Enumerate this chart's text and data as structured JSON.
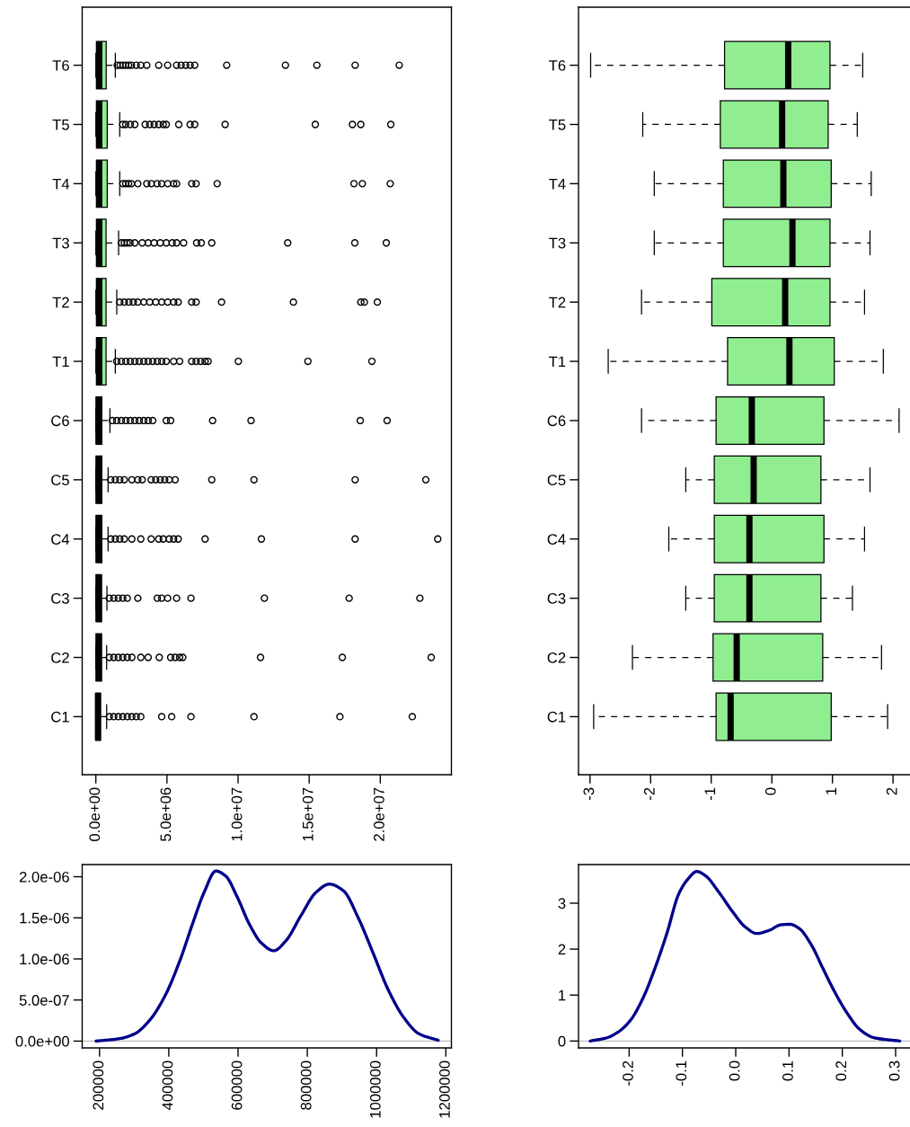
{
  "chart_data": [
    {
      "type": "box",
      "orientation": "horizontal",
      "categories": [
        "T6",
        "T5",
        "T4",
        "T3",
        "T2",
        "T1",
        "C6",
        "C5",
        "C4",
        "C3",
        "C2",
        "C1"
      ],
      "color": "#90ee90",
      "marker": "circle",
      "line_style": "dashed",
      "boxes": [
        {
          "low": 0,
          "q1": 40000,
          "median": 240000,
          "q3": 730000,
          "high": 1370000,
          "outliers": [
            1500000,
            1700000,
            1900000,
            2100000,
            2300000,
            2500000,
            2840000,
            3160000,
            3580000,
            4420000,
            5050000,
            5680000,
            6000000,
            6320000,
            6630000,
            6950000,
            9200000,
            13330000,
            15540000,
            18230000,
            21330000
          ]
        },
        {
          "low": 0,
          "q1": 40000,
          "median": 240000,
          "q3": 800000,
          "high": 1680000,
          "outliers": [
            1890000,
            2100000,
            2420000,
            2740000,
            3470000,
            3790000,
            4100000,
            4420000,
            4740000,
            4950000,
            5830000,
            6630000,
            6950000,
            9090000,
            15430000,
            18040000,
            18630000,
            20740000
          ]
        },
        {
          "low": 0,
          "q1": 40000,
          "median": 240000,
          "q3": 800000,
          "high": 1680000,
          "outliers": [
            1900000,
            2100000,
            2300000,
            2500000,
            2950000,
            3580000,
            3900000,
            4300000,
            4630000,
            5050000,
            5470000,
            5680000,
            6740000,
            7050000,
            8530000,
            18150000,
            18740000,
            20700000
          ]
        },
        {
          "low": 0,
          "q1": 40000,
          "median": 240000,
          "q3": 720000,
          "high": 1600000,
          "outliers": [
            1800000,
            2000000,
            2200000,
            2400000,
            2740000,
            3260000,
            3680000,
            4100000,
            4530000,
            4950000,
            5370000,
            5680000,
            6170000,
            7090000,
            7410000,
            8150000,
            13490000,
            18210000,
            20420000
          ]
        },
        {
          "low": 0,
          "q1": 40000,
          "median": 240000,
          "q3": 720000,
          "high": 1470000,
          "outliers": [
            1680000,
            2000000,
            2320000,
            2630000,
            2950000,
            3370000,
            3790000,
            4210000,
            4630000,
            5050000,
            5470000,
            5790000,
            6740000,
            7050000,
            8840000,
            13890000,
            18630000,
            18880000,
            19790000
          ]
        },
        {
          "low": 0,
          "q1": 40000,
          "median": 240000,
          "q3": 720000,
          "high": 1370000,
          "outliers": [
            1470000,
            1790000,
            2110000,
            2420000,
            2740000,
            3050000,
            3370000,
            3680000,
            4000000,
            4320000,
            4630000,
            4950000,
            5470000,
            5890000,
            6740000,
            7050000,
            7370000,
            7680000,
            7890000,
            10020000,
            14910000,
            19410000
          ]
        },
        {
          "low": 0,
          "q1": 20000,
          "median": 200000,
          "q3": 420000,
          "high": 990000,
          "outliers": [
            1160000,
            1470000,
            1790000,
            2110000,
            2420000,
            2740000,
            3050000,
            3370000,
            3680000,
            4000000,
            4950000,
            5260000,
            8210000,
            10910000,
            18590000,
            20480000
          ]
        },
        {
          "low": 0,
          "q1": 20000,
          "median": 200000,
          "q3": 420000,
          "high": 860000,
          "outliers": [
            1050000,
            1370000,
            1680000,
            2000000,
            2530000,
            2950000,
            3260000,
            3890000,
            4210000,
            4530000,
            4840000,
            5160000,
            5580000,
            8150000,
            11120000,
            18230000,
            23200000
          ]
        },
        {
          "low": 0,
          "q1": 20000,
          "median": 200000,
          "q3": 420000,
          "high": 860000,
          "outliers": [
            1050000,
            1370000,
            1680000,
            2000000,
            2530000,
            3160000,
            3890000,
            4420000,
            4740000,
            5160000,
            5470000,
            5790000,
            7680000,
            11640000,
            18230000,
            24040000
          ]
        },
        {
          "low": 0,
          "q1": 20000,
          "median": 200000,
          "q3": 400000,
          "high": 780000,
          "outliers": [
            950000,
            1260000,
            1580000,
            1890000,
            2210000,
            2950000,
            4320000,
            4630000,
            5050000,
            5680000,
            6690000,
            11850000,
            17810000,
            22780000
          ]
        },
        {
          "low": 0,
          "q1": 20000,
          "median": 200000,
          "q3": 400000,
          "high": 760000,
          "outliers": [
            950000,
            1260000,
            1580000,
            1890000,
            2210000,
            2530000,
            3160000,
            3680000,
            4460000,
            5260000,
            5580000,
            5890000,
            6110000,
            11580000,
            17330000,
            23580000
          ]
        },
        {
          "low": 0,
          "q1": 0,
          "median": 150000,
          "q3": 320000,
          "high": 760000,
          "outliers": [
            950000,
            1260000,
            1580000,
            1890000,
            2210000,
            2530000,
            2840000,
            3160000,
            4630000,
            5330000,
            6690000,
            11120000,
            17160000,
            22250000
          ]
        }
      ],
      "xlim": [
        -960000,
        25000000
      ],
      "xticks": [
        {
          "value": 0,
          "label": "0.0e+00"
        },
        {
          "value": 5000000,
          "label": "5.0e+06"
        },
        {
          "value": 10000000,
          "label": "1.0e+07"
        },
        {
          "value": 15000000,
          "label": "1.5e+07"
        },
        {
          "value": 20000000,
          "label": "2.0e+07"
        }
      ]
    },
    {
      "type": "box",
      "orientation": "horizontal",
      "categories": [
        "T6",
        "T5",
        "T4",
        "T3",
        "T2",
        "T1",
        "C6",
        "C5",
        "C4",
        "C3",
        "C2",
        "C1"
      ],
      "color": "#90ee90",
      "line_style": "dashed",
      "boxes": [
        {
          "low": -2.99,
          "q1": -0.78,
          "median": 0.27,
          "q3": 0.96,
          "high": 1.5
        },
        {
          "low": -2.13,
          "q1": -0.85,
          "median": 0.17,
          "q3": 0.93,
          "high": 1.41
        },
        {
          "low": -1.94,
          "q1": -0.8,
          "median": 0.19,
          "q3": 0.98,
          "high": 1.64
        },
        {
          "low": -1.94,
          "q1": -0.8,
          "median": 0.34,
          "q3": 0.96,
          "high": 1.62
        },
        {
          "low": -2.15,
          "q1": -0.99,
          "median": 0.22,
          "q3": 0.96,
          "high": 1.53
        },
        {
          "low": -2.7,
          "q1": -0.73,
          "median": 0.29,
          "q3": 1.03,
          "high": 1.84
        },
        {
          "low": -2.15,
          "q1": -0.92,
          "median": -0.33,
          "q3": 0.86,
          "high": 2.1
        },
        {
          "low": -1.42,
          "q1": -0.95,
          "median": -0.3,
          "q3": 0.81,
          "high": 1.62
        },
        {
          "low": -1.7,
          "q1": -0.95,
          "median": -0.37,
          "q3": 0.86,
          "high": 1.53
        },
        {
          "low": -1.42,
          "q1": -0.95,
          "median": -0.37,
          "q3": 0.81,
          "high": 1.33
        },
        {
          "low": -2.3,
          "q1": -0.97,
          "median": -0.58,
          "q3": 0.84,
          "high": 1.81
        },
        {
          "low": -2.94,
          "q1": -0.92,
          "median": -0.68,
          "q3": 0.98,
          "high": 1.91
        }
      ],
      "xlim": [
        -3.19,
        2.28
      ],
      "xticks": [
        -3,
        -2,
        -1,
        0,
        1,
        2
      ]
    },
    {
      "type": "line",
      "color": "#00008b",
      "x": [
        190000,
        258000,
        302000,
        346000,
        389000,
        433000,
        468000,
        503000,
        536000,
        564000,
        598000,
        633000,
        668000,
        703000,
        738000,
        782000,
        825000,
        864000,
        904000,
        947000,
        991000,
        1034000,
        1078000,
        1122000,
        1178000
      ],
      "values": [
        0.0,
        3e-08,
        9e-08,
        2.6e-07,
        5.5e-07,
        9.9e-07,
        1.42e-06,
        1.82e-06,
        2.07e-06,
        2.01e-06,
        1.75e-06,
        1.42e-06,
        1.19e-06,
        1.1e-06,
        1.22e-06,
        1.53e-06,
        1.81e-06,
        1.91e-06,
        1.83e-06,
        1.5e-06,
        1.06e-06,
        6.2e-07,
        2.9e-07,
        9e-08,
        1e-08
      ],
      "xlim": [
        150000,
        1216000
      ],
      "ylim": [
        -8.3e-08,
        2.148e-06
      ],
      "xticks": [
        200000,
        400000,
        600000,
        800000,
        1000000,
        1200000
      ],
      "yticks": [
        {
          "value": 0,
          "label": "0.0e+00"
        },
        {
          "value": 5e-07,
          "label": "5.0e-07"
        },
        {
          "value": 1e-06,
          "label": "1.0e-06"
        },
        {
          "value": 1.5e-06,
          "label": "1.5e-06"
        },
        {
          "value": 2e-06,
          "label": "2.0e-06"
        }
      ],
      "ref_lines": [
        {
          "axis": "y",
          "value": 0,
          "color": "#bebebe"
        }
      ]
    },
    {
      "type": "line",
      "color": "#00008b",
      "x": [
        -0.273,
        -0.242,
        -0.22,
        -0.197,
        -0.175,
        -0.152,
        -0.129,
        -0.107,
        -0.09,
        -0.073,
        -0.056,
        -0.033,
        -0.005,
        0.018,
        0.04,
        0.063,
        0.085,
        0.102,
        0.119,
        0.142,
        0.164,
        0.187,
        0.21,
        0.232,
        0.26,
        0.308
      ],
      "values": [
        0.0,
        0.07,
        0.2,
        0.46,
        0.91,
        1.57,
        2.35,
        3.2,
        3.52,
        3.69,
        3.59,
        3.26,
        2.8,
        2.48,
        2.34,
        2.41,
        2.53,
        2.54,
        2.45,
        2.09,
        1.57,
        1.04,
        0.59,
        0.26,
        0.07,
        0.0
      ],
      "xlim": [
        -0.295,
        0.327
      ],
      "ylim": [
        -0.15,
        3.84
      ],
      "xticks": [
        {
          "value": -0.2,
          "label": "-0.2"
        },
        {
          "value": -0.1,
          "label": "-0.1"
        },
        {
          "value": 0,
          "label": "0.0"
        },
        {
          "value": 0.1,
          "label": "0.1"
        },
        {
          "value": 0.2,
          "label": "0.2"
        },
        {
          "value": 0.3,
          "label": "0.3"
        }
      ],
      "yticks": [
        0,
        1,
        2,
        3
      ],
      "ref_lines": [
        {
          "axis": "y",
          "value": 0,
          "color": "#bebebe"
        }
      ]
    }
  ]
}
